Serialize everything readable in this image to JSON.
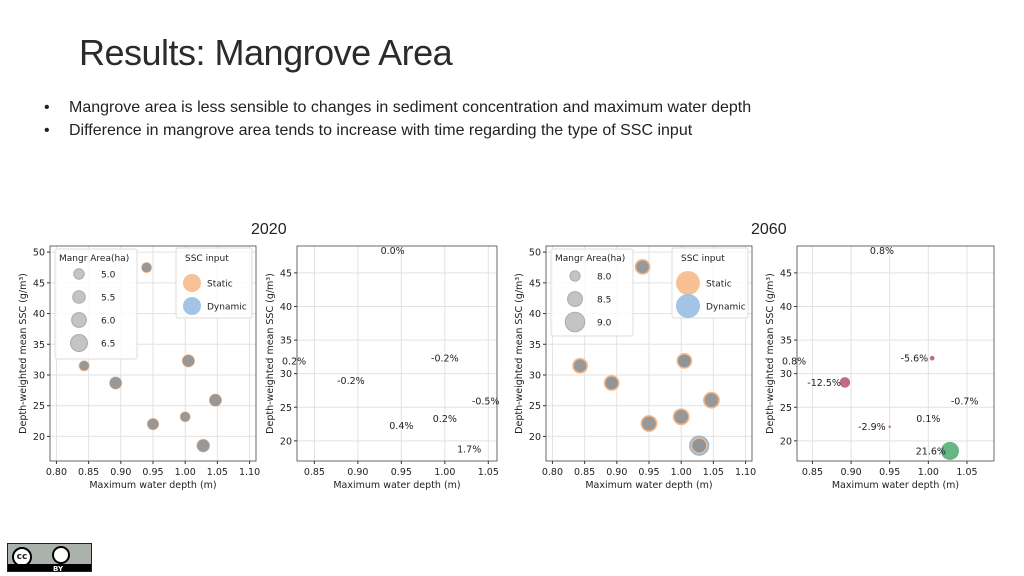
{
  "slide": {
    "title": "Results: Mangrove Area",
    "bullets": [
      "Mangrove area is less sensible to changes in sediment concentration and maximum water depth",
      "Difference in mangrove area tends to increase with time regarding the type of SSC input"
    ],
    "bullet_symbol": "•",
    "year_2020": "2020",
    "year_2060": "2060",
    "license_cc": "cc",
    "license_by": "BY"
  },
  "chart_data": [
    {
      "id": "bubble2020",
      "type": "scatter",
      "panel_label": "2020",
      "xlabel": "Maximum water depth (m)",
      "ylabel": "Depth-weighted mean SSC (g/m³)",
      "xlim": [
        0.79,
        1.11
      ],
      "ylim": [
        16,
        51
      ],
      "xticks": [
        0.8,
        0.85,
        0.9,
        0.95,
        1.0,
        1.05,
        1.1
      ],
      "yticks": [
        20,
        25,
        30,
        35,
        40,
        45,
        50
      ],
      "grid": true,
      "points": [
        {
          "x": 0.94,
          "y": 47.5,
          "size": 5.5
        },
        {
          "x": 0.843,
          "y": 31.5,
          "size": 5.5
        },
        {
          "x": 0.892,
          "y": 28.7,
          "size": 6.0
        },
        {
          "x": 1.005,
          "y": 32.3,
          "size": 6.0
        },
        {
          "x": 1.047,
          "y": 25.9,
          "size": 6.0
        },
        {
          "x": 1.0,
          "y": 23.2,
          "size": 5.5
        },
        {
          "x": 0.95,
          "y": 22.0,
          "size": 5.8
        },
        {
          "x": 1.028,
          "y": 18.5,
          "size": 6.1
        }
      ],
      "legend_size": {
        "title": "Mangr Area(ha)",
        "items": [
          {
            "label": "5.0",
            "size": 5.0
          },
          {
            "label": "5.5",
            "size": 5.5
          },
          {
            "label": "6.0",
            "size": 6.0
          },
          {
            "label": "6.5",
            "size": 6.5
          }
        ],
        "location": "top-left"
      },
      "legend_ssc": {
        "title": "SSC input",
        "items": [
          {
            "label": "Static",
            "color": "#f5b07a"
          },
          {
            "label": "Dynamic",
            "color": "#8cb5dd"
          }
        ],
        "location": "top-right"
      }
    },
    {
      "id": "diff2020",
      "type": "scatter",
      "xlabel": "Maximum water depth (m)",
      "ylabel": "Depth-weighted mean SSC (g/m³)",
      "xlim": [
        0.83,
        1.06
      ],
      "ylim": [
        17,
        49
      ],
      "xticks": [
        0.85,
        0.9,
        0.95,
        1.0,
        1.05
      ],
      "yticks": [
        20,
        25,
        30,
        35,
        40,
        45
      ],
      "grid": true,
      "points": [
        {
          "x": 0.94,
          "y": 48.3,
          "label": "0.0%"
        },
        {
          "x": 0.835,
          "y": 31.9,
          "label": "0.2%"
        },
        {
          "x": 0.892,
          "y": 29.0,
          "label": "-0.2%"
        },
        {
          "x": 1.0,
          "y": 32.3,
          "label": "-0.2%"
        },
        {
          "x": 1.047,
          "y": 25.9,
          "label": "-0.5%"
        },
        {
          "x": 1.0,
          "y": 23.3,
          "label": "0.2%"
        },
        {
          "x": 0.95,
          "y": 22.3,
          "label": "0.4%"
        },
        {
          "x": 1.028,
          "y": 18.8,
          "label": "1.7%"
        }
      ]
    },
    {
      "id": "bubble2060",
      "type": "scatter",
      "panel_label": "2060",
      "xlabel": "Maximum water depth (m)",
      "ylabel": "Depth-weighted mean SSC (g/m³)",
      "xlim": [
        0.79,
        1.11
      ],
      "ylim": [
        16,
        51
      ],
      "xticks": [
        0.8,
        0.85,
        0.9,
        0.95,
        1.0,
        1.05,
        1.1
      ],
      "yticks": [
        20,
        25,
        30,
        35,
        40,
        45,
        50
      ],
      "grid": true,
      "points": [
        {
          "x": 0.94,
          "y": 47.6,
          "size": 8.2,
          "ssc": "Static"
        },
        {
          "x": 0.843,
          "y": 31.5,
          "size": 8.2,
          "ssc": "Static"
        },
        {
          "x": 0.892,
          "y": 28.7,
          "size": 8.2,
          "ssc": "Static"
        },
        {
          "x": 1.005,
          "y": 32.3,
          "size": 8.2,
          "ssc": "Static"
        },
        {
          "x": 1.047,
          "y": 25.9,
          "size": 8.3,
          "ssc": "Static"
        },
        {
          "x": 1.0,
          "y": 23.2,
          "size": 8.3,
          "ssc": "Static"
        },
        {
          "x": 0.95,
          "y": 22.1,
          "size": 8.3,
          "ssc": "Static"
        },
        {
          "x": 1.028,
          "y": 18.5,
          "size": 8.3,
          "ssc": "Static"
        },
        {
          "x": 0.892,
          "y": 28.7,
          "size": 8.1,
          "ssc": "Dynamic"
        },
        {
          "x": 1.005,
          "y": 32.3,
          "size": 8.0,
          "ssc": "Dynamic"
        },
        {
          "x": 1.028,
          "y": 18.5,
          "size": 8.6,
          "ssc": "Dynamic"
        }
      ],
      "legend_size": {
        "title": "Mangr Area(ha)",
        "items": [
          {
            "label": "8.0",
            "size": 8.0
          },
          {
            "label": "8.5",
            "size": 8.5
          },
          {
            "label": "9.0",
            "size": 9.0
          }
        ],
        "location": "top-left"
      },
      "legend_ssc": {
        "title": "SSC input",
        "items": [
          {
            "label": "Static",
            "color": "#f5b07a"
          },
          {
            "label": "Dynamic",
            "color": "#8cb5dd"
          }
        ],
        "location": "top-right"
      }
    },
    {
      "id": "diff2060",
      "type": "scatter",
      "xlabel": "Maximum water depth (m)",
      "ylabel": "Depth-weighted mean SSC (g/m³)",
      "xlim": [
        0.83,
        1.085
      ],
      "ylim": [
        17,
        49
      ],
      "xticks": [
        0.85,
        0.9,
        0.95,
        1.0,
        1.05
      ],
      "yticks": [
        20,
        25,
        30,
        35,
        40,
        45
      ],
      "grid": true,
      "points": [
        {
          "x": 0.94,
          "y": 48.3,
          "label": "0.8%",
          "marker": 0
        },
        {
          "x": 0.83,
          "y": 31.9,
          "label": "0.8%",
          "marker": 0
        },
        {
          "x": 0.892,
          "y": 28.7,
          "label": "-12.5%",
          "marker": 12.5,
          "color": "#b5517a"
        },
        {
          "x": 1.005,
          "y": 32.3,
          "label": "-5.6%",
          "marker": 5.6,
          "color": "#b5517a"
        },
        {
          "x": 1.047,
          "y": 25.9,
          "label": "-0.7%",
          "marker": 0
        },
        {
          "x": 1.0,
          "y": 23.3,
          "label": "0.1%",
          "marker": 0
        },
        {
          "x": 0.95,
          "y": 22.1,
          "label": "-2.9%",
          "marker": 2.9,
          "color": "#b5517a"
        },
        {
          "x": 1.028,
          "y": 18.5,
          "label": "21.6%",
          "marker": 21.6,
          "color": "#4caa6e"
        }
      ]
    }
  ]
}
